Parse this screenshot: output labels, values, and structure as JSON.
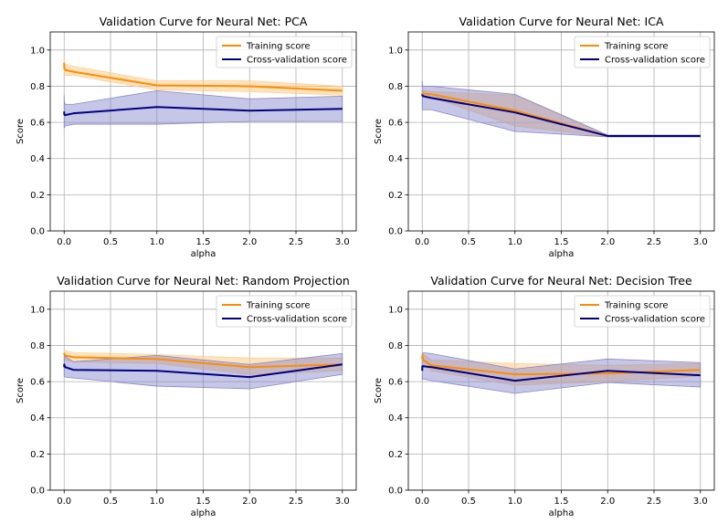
{
  "colors": {
    "training": "#ff8c00",
    "training_band": "#ffcc8a",
    "cv": "#000080",
    "cv_band": "#8080c8",
    "grid": "#b0b0b0"
  },
  "legend": {
    "labels": [
      "Training score",
      "Cross-validation score"
    ],
    "location": "upper-right"
  },
  "chart_data": [
    {
      "type": "line",
      "title": "Validation Curve for Neural Net: PCA",
      "xlabel": "alpha",
      "ylabel": "Score",
      "xlim": [
        -0.15,
        3.15
      ],
      "ylim": [
        0.0,
        1.1
      ],
      "xticks": [
        "0.0",
        "0.5",
        "1.0",
        "1.5",
        "2.0",
        "2.5",
        "3.0"
      ],
      "yticks": [
        "0.0",
        "0.2",
        "0.4",
        "0.6",
        "0.8",
        "1.0"
      ],
      "grid": true,
      "x": [
        0.0001,
        0.001,
        0.01,
        0.1,
        1,
        2,
        3
      ],
      "series": [
        {
          "name": "Training score",
          "values": [
            0.93,
            0.9,
            0.89,
            0.88,
            0.805,
            0.8,
            0.775
          ],
          "lower": [
            0.91,
            0.87,
            0.86,
            0.86,
            0.78,
            0.77,
            0.75
          ],
          "upper": [
            0.95,
            0.93,
            0.92,
            0.91,
            0.83,
            0.83,
            0.8
          ]
        },
        {
          "name": "Cross-validation score",
          "values": [
            0.66,
            0.645,
            0.64,
            0.65,
            0.685,
            0.665,
            0.675
          ],
          "lower": [
            0.57,
            0.57,
            0.58,
            0.59,
            0.59,
            0.605,
            0.605
          ],
          "upper": [
            0.75,
            0.72,
            0.7,
            0.7,
            0.775,
            0.73,
            0.745
          ]
        }
      ]
    },
    {
      "type": "line",
      "title": "Validation Curve for Neural Net: ICA",
      "xlabel": "alpha",
      "ylabel": "Score",
      "xlim": [
        -0.15,
        3.15
      ],
      "ylim": [
        0.0,
        1.1
      ],
      "xticks": [
        "0.0",
        "0.5",
        "1.0",
        "1.5",
        "2.0",
        "2.5",
        "3.0"
      ],
      "yticks": [
        "0.0",
        "0.2",
        "0.4",
        "0.6",
        "0.8",
        "1.0"
      ],
      "grid": true,
      "x": [
        0.0001,
        0.001,
        0.01,
        0.1,
        1,
        2,
        3
      ],
      "series": [
        {
          "name": "Training score",
          "values": [
            0.755,
            0.76,
            0.76,
            0.755,
            0.665,
            0.525,
            0.525
          ],
          "lower": [
            0.74,
            0.745,
            0.745,
            0.74,
            0.58,
            0.52,
            0.52
          ],
          "upper": [
            0.77,
            0.775,
            0.775,
            0.77,
            0.75,
            0.53,
            0.53
          ]
        },
        {
          "name": "Cross-validation score",
          "values": [
            0.755,
            0.75,
            0.745,
            0.735,
            0.655,
            0.525,
            0.525
          ],
          "lower": [
            0.67,
            0.67,
            0.67,
            0.67,
            0.55,
            0.52,
            0.52
          ],
          "upper": [
            0.83,
            0.81,
            0.8,
            0.8,
            0.755,
            0.53,
            0.53
          ]
        }
      ]
    },
    {
      "type": "line",
      "title": "Validation Curve for Neural Net: Random Projection",
      "xlabel": "alpha",
      "ylabel": "Score",
      "xlim": [
        -0.15,
        3.15
      ],
      "ylim": [
        0.0,
        1.1
      ],
      "xticks": [
        "0.0",
        "0.5",
        "1.0",
        "1.5",
        "2.0",
        "2.5",
        "3.0"
      ],
      "yticks": [
        "0.0",
        "0.2",
        "0.4",
        "0.6",
        "0.8",
        "1.0"
      ],
      "grid": true,
      "x": [
        0.0001,
        0.001,
        0.01,
        0.1,
        1,
        2,
        3
      ],
      "series": [
        {
          "name": "Training score",
          "values": [
            0.75,
            0.755,
            0.745,
            0.735,
            0.725,
            0.68,
            0.695
          ],
          "lower": [
            0.73,
            0.73,
            0.72,
            0.71,
            0.7,
            0.64,
            0.66
          ],
          "upper": [
            0.77,
            0.775,
            0.77,
            0.76,
            0.75,
            0.73,
            0.73
          ]
        },
        {
          "name": "Cross-validation score",
          "values": [
            0.68,
            0.695,
            0.68,
            0.665,
            0.66,
            0.625,
            0.695
          ],
          "lower": [
            0.63,
            0.63,
            0.625,
            0.62,
            0.575,
            0.56,
            0.64
          ],
          "upper": [
            0.74,
            0.75,
            0.74,
            0.71,
            0.745,
            0.695,
            0.755
          ]
        }
      ]
    },
    {
      "type": "line",
      "title": "Validation Curve for Neural Net: Decision Tree",
      "xlabel": "alpha",
      "ylabel": "Score",
      "xlim": [
        -0.15,
        3.15
      ],
      "ylim": [
        0.0,
        1.1
      ],
      "xticks": [
        "0.0",
        "0.5",
        "1.0",
        "1.5",
        "2.0",
        "2.5",
        "3.0"
      ],
      "yticks": [
        "0.0",
        "0.2",
        "0.4",
        "0.6",
        "0.8",
        "1.0"
      ],
      "grid": true,
      "x": [
        0.0001,
        0.001,
        0.01,
        0.1,
        1,
        2,
        3
      ],
      "series": [
        {
          "name": "Training score",
          "values": [
            0.725,
            0.745,
            0.72,
            0.69,
            0.64,
            0.645,
            0.665
          ],
          "lower": [
            0.7,
            0.72,
            0.69,
            0.66,
            0.58,
            0.6,
            0.63
          ],
          "upper": [
            0.75,
            0.77,
            0.75,
            0.72,
            0.7,
            0.69,
            0.7
          ]
        },
        {
          "name": "Cross-validation score",
          "values": [
            0.66,
            0.685,
            0.685,
            0.68,
            0.605,
            0.66,
            0.635
          ],
          "lower": [
            0.61,
            0.61,
            0.615,
            0.605,
            0.535,
            0.595,
            0.57
          ],
          "upper": [
            0.75,
            0.755,
            0.76,
            0.755,
            0.67,
            0.725,
            0.705
          ]
        }
      ]
    }
  ]
}
